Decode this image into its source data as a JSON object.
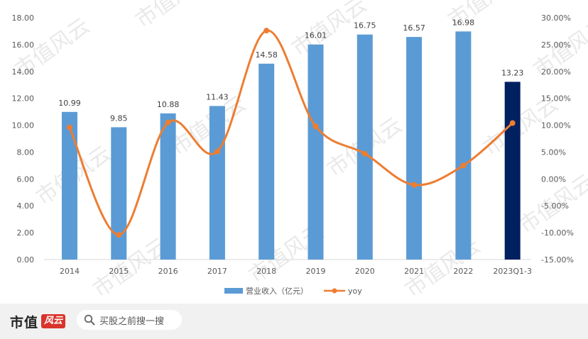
{
  "chart_data": {
    "type": "bar",
    "categories": [
      "2014",
      "2015",
      "2016",
      "2017",
      "2018",
      "2019",
      "2020",
      "2021",
      "2022",
      "2023Q1-3"
    ],
    "series": [
      {
        "name": "营业收入（亿元）",
        "axis": "left",
        "values": [
          10.99,
          9.85,
          10.88,
          11.43,
          14.58,
          16.01,
          16.75,
          16.57,
          16.98,
          13.23
        ],
        "data_labels": [
          "10.99",
          "9.85",
          "10.88",
          "11.43",
          "14.58",
          "16.01",
          "16.75",
          "16.57",
          "16.98",
          "13.23"
        ],
        "color": "#5b9bd5",
        "highlight_color": "#002060",
        "highlight_index": 9
      },
      {
        "name": "yoy",
        "type": "line",
        "axis": "right",
        "smooth": true,
        "values": [
          9.6,
          -10.4,
          10.5,
          5.1,
          27.6,
          9.8,
          4.7,
          -1.1,
          2.5,
          10.4
        ],
        "color": "#ed7d31"
      }
    ],
    "y_left": {
      "min": 0,
      "max": 18,
      "step": 2,
      "tick_labels": [
        "0.00",
        "2.00",
        "4.00",
        "6.00",
        "8.00",
        "10.00",
        "12.00",
        "14.00",
        "16.00",
        "18.00"
      ]
    },
    "y_right": {
      "min": -15,
      "max": 30,
      "step": 5,
      "tick_labels": [
        "-15.00%",
        "-10.00%",
        "-5.00%",
        "0.00%",
        "5.00%",
        "10.00%",
        "15.00%",
        "20.00%",
        "25.00%",
        "30.00%"
      ]
    },
    "grid": false,
    "legend": "bottom-center"
  },
  "watermark": {
    "text": "市值风云"
  },
  "footer": {
    "brand_name": "市值",
    "brand_seal": "风云",
    "search_placeholder": "买股之前搜一搜"
  }
}
